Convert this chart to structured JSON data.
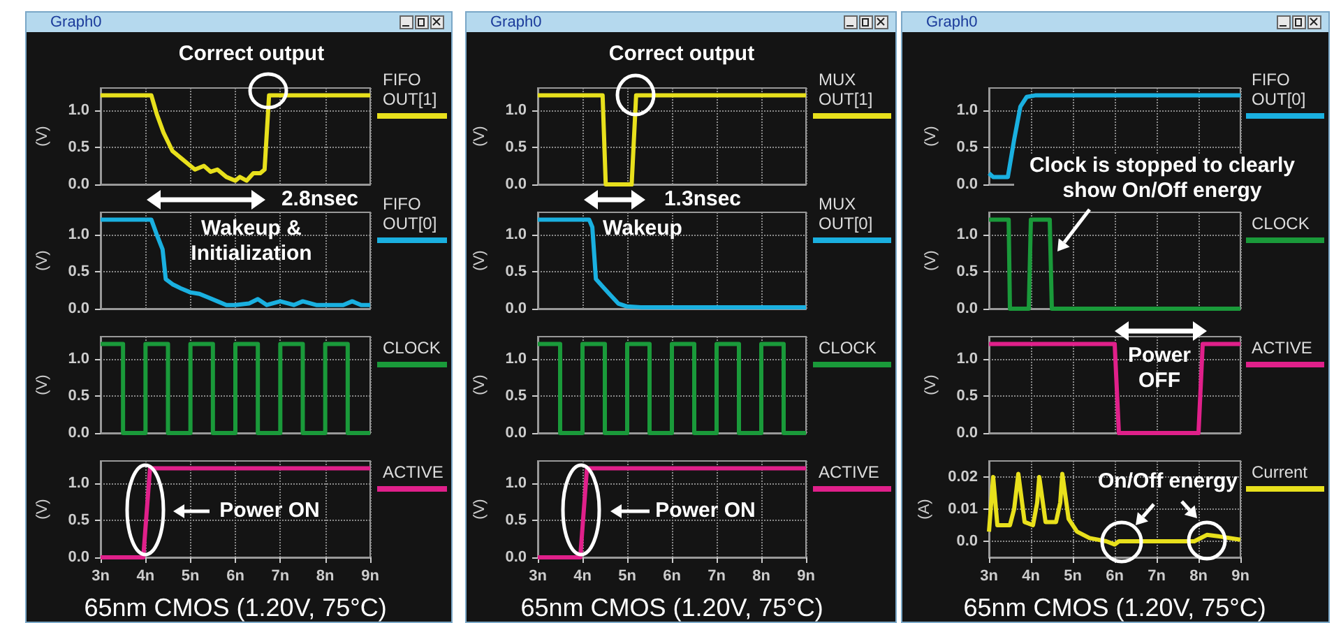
{
  "chart_data": [
    {
      "type": "line",
      "title": "Graph0",
      "ylabel": "(V)",
      "xlim": [
        3,
        9
      ],
      "ylim": [
        0,
        1.3
      ],
      "tick_labels": "y",
      "grid": true,
      "legend": "right",
      "annotations": [
        "Correct output",
        "2.8nsec"
      ],
      "xticks": [
        3,
        4,
        5,
        6,
        7,
        8,
        9
      ],
      "yticks": [
        {
          "value": 0,
          "label": "0.0"
        },
        {
          "value": 0.5,
          "label": "0.5"
        },
        {
          "value": 1,
          "label": "1.0"
        }
      ],
      "series": [
        {
          "name": "FIFO OUT[1]",
          "color": "#e8e01c",
          "x": [
            3,
            4.13,
            4.25,
            4.4,
            4.6,
            4.8,
            5.0,
            5.1,
            5.3,
            5.45,
            5.6,
            5.8,
            6.0,
            6.1,
            6.25,
            6.4,
            6.55,
            6.65,
            6.75,
            6.9,
            9
          ],
          "values": [
            1.2,
            1.2,
            0.95,
            0.7,
            0.45,
            0.35,
            0.25,
            0.2,
            0.25,
            0.17,
            0.2,
            0.1,
            0.05,
            0.1,
            0.05,
            0.15,
            0.15,
            0.2,
            1.2,
            1.2,
            1.2
          ]
        }
      ]
    },
    {
      "type": "line",
      "ylabel": "(V)",
      "xlim": [
        3,
        9
      ],
      "ylim": [
        0,
        1.3
      ],
      "tick_labels": "y",
      "grid": true,
      "legend": "right",
      "annotations": [
        "Wakeup & Initialization"
      ],
      "xticks": [
        3,
        4,
        5,
        6,
        7,
        8,
        9
      ],
      "yticks": [
        {
          "value": 0,
          "label": "0.0"
        },
        {
          "value": 0.5,
          "label": "0.5"
        },
        {
          "value": 1,
          "label": "1.0"
        }
      ],
      "series": [
        {
          "name": "FIFO OUT[0]",
          "color": "#1ab0e0",
          "x": [
            3,
            4.13,
            4.25,
            4.38,
            4.45,
            4.6,
            4.8,
            5.0,
            5.2,
            5.4,
            5.6,
            5.8,
            6.0,
            6.3,
            6.5,
            6.7,
            7.0,
            7.3,
            7.5,
            7.8,
            8.1,
            8.4,
            8.6,
            8.8,
            9
          ],
          "values": [
            1.2,
            1.2,
            1.0,
            0.8,
            0.4,
            0.33,
            0.27,
            0.22,
            0.2,
            0.15,
            0.1,
            0.05,
            0.05,
            0.07,
            0.13,
            0.05,
            0.1,
            0.05,
            0.1,
            0.05,
            0.05,
            0.05,
            0.1,
            0.05,
            0.05
          ]
        }
      ]
    },
    {
      "type": "line",
      "ylabel": "(V)",
      "xlim": [
        3,
        9
      ],
      "ylim": [
        0,
        1.3
      ],
      "tick_labels": "y",
      "grid": true,
      "legend": "right",
      "xticks": [
        3,
        4,
        5,
        6,
        7,
        8,
        9
      ],
      "yticks": [
        {
          "value": 0,
          "label": "0.0"
        },
        {
          "value": 0.5,
          "label": "0.5"
        },
        {
          "value": 1,
          "label": "1.0"
        }
      ],
      "series": [
        {
          "name": "CLOCK",
          "color": "#1a9a3a",
          "x": [
            3,
            3.5,
            3.5,
            4,
            4,
            4.5,
            4.5,
            5,
            5,
            5.5,
            5.5,
            6,
            6,
            6.5,
            6.5,
            7,
            7,
            7.5,
            7.5,
            8,
            8,
            8.5,
            8.5,
            9
          ],
          "values": [
            1.2,
            1.2,
            0,
            0,
            1.2,
            1.2,
            0,
            0,
            1.2,
            1.2,
            0,
            0,
            1.2,
            1.2,
            0,
            0,
            1.2,
            1.2,
            0,
            0,
            1.2,
            1.2,
            0,
            0
          ]
        }
      ]
    },
    {
      "type": "line",
      "ylabel": "(V)",
      "xlabel": "65nm CMOS (1.20V, 75°C)",
      "xlim": [
        3,
        9
      ],
      "ylim": [
        0,
        1.3
      ],
      "grid": true,
      "legend": "right",
      "annotations": [
        "Power ON"
      ],
      "xticks": [
        {
          "value": 3,
          "label": "3n"
        },
        {
          "value": 4,
          "label": "4n"
        },
        {
          "value": 5,
          "label": "5n"
        },
        {
          "value": 6,
          "label": "6n"
        },
        {
          "value": 7,
          "label": "7n"
        },
        {
          "value": 8,
          "label": "8n"
        },
        {
          "value": 9,
          "label": "9n"
        }
      ],
      "yticks": [
        {
          "value": 0,
          "label": "0.0"
        },
        {
          "value": 0.5,
          "label": "0.5"
        },
        {
          "value": 1,
          "label": "1.0"
        }
      ],
      "series": [
        {
          "name": "ACTIVE",
          "color": "#e0208a",
          "x": [
            3,
            3.95,
            4.1,
            9
          ],
          "values": [
            0,
            0,
            1.2,
            1.2
          ]
        }
      ]
    },
    {
      "type": "line",
      "title": "Graph0",
      "ylabel": "(V)",
      "xlim": [
        3,
        9
      ],
      "ylim": [
        0,
        1.3
      ],
      "tick_labels": "y",
      "grid": true,
      "legend": "right",
      "annotations": [
        "Correct output",
        "1.3nsec"
      ],
      "xticks": [
        3,
        4,
        5,
        6,
        7,
        8,
        9
      ],
      "yticks": [
        {
          "value": 0,
          "label": "0.0"
        },
        {
          "value": 0.5,
          "label": "0.5"
        },
        {
          "value": 1,
          "label": "1.0"
        }
      ],
      "series": [
        {
          "name": "MUX OUT[1]",
          "color": "#e8e01c",
          "x": [
            3,
            4.45,
            4.52,
            5.1,
            5.2,
            9
          ],
          "values": [
            1.2,
            1.2,
            0,
            0,
            1.2,
            1.2
          ]
        }
      ]
    },
    {
      "type": "line",
      "ylabel": "(V)",
      "xlim": [
        3,
        9
      ],
      "ylim": [
        0,
        1.3
      ],
      "tick_labels": "y",
      "grid": true,
      "legend": "right",
      "annotations": [
        "Wakeup"
      ],
      "xticks": [
        3,
        4,
        5,
        6,
        7,
        8,
        9
      ],
      "yticks": [
        {
          "value": 0,
          "label": "0.0"
        },
        {
          "value": 0.5,
          "label": "0.5"
        },
        {
          "value": 1,
          "label": "1.0"
        }
      ],
      "series": [
        {
          "name": "MUX OUT[0]",
          "color": "#1ab0e0",
          "x": [
            3,
            4.15,
            4.22,
            4.3,
            4.45,
            4.6,
            4.8,
            5.0,
            5.3,
            9
          ],
          "values": [
            1.2,
            1.2,
            1.1,
            0.4,
            0.3,
            0.2,
            0.07,
            0.03,
            0.02,
            0.02
          ]
        }
      ]
    },
    {
      "type": "line",
      "ylabel": "(V)",
      "xlim": [
        3,
        9
      ],
      "ylim": [
        0,
        1.3
      ],
      "tick_labels": "y",
      "grid": true,
      "legend": "right",
      "xticks": [
        3,
        4,
        5,
        6,
        7,
        8,
        9
      ],
      "yticks": [
        {
          "value": 0,
          "label": "0.0"
        },
        {
          "value": 0.5,
          "label": "0.5"
        },
        {
          "value": 1,
          "label": "1.0"
        }
      ],
      "series": [
        {
          "name": "CLOCK",
          "color": "#1a9a3a",
          "x": [
            3,
            3.5,
            3.5,
            4,
            4,
            4.5,
            4.5,
            5,
            5,
            5.5,
            5.5,
            6,
            6,
            6.5,
            6.5,
            7,
            7,
            7.5,
            7.5,
            8,
            8,
            8.5,
            8.5,
            9
          ],
          "values": [
            1.2,
            1.2,
            0,
            0,
            1.2,
            1.2,
            0,
            0,
            1.2,
            1.2,
            0,
            0,
            1.2,
            1.2,
            0,
            0,
            1.2,
            1.2,
            0,
            0,
            1.2,
            1.2,
            0,
            0
          ]
        }
      ]
    },
    {
      "type": "line",
      "ylabel": "(V)",
      "xlabel": "65nm CMOS (1.20V, 75°C)",
      "xlim": [
        3,
        9
      ],
      "ylim": [
        0,
        1.3
      ],
      "grid": true,
      "legend": "right",
      "annotations": [
        "Power ON"
      ],
      "xticks": [
        {
          "value": 3,
          "label": "3n"
        },
        {
          "value": 4,
          "label": "4n"
        },
        {
          "value": 5,
          "label": "5n"
        },
        {
          "value": 6,
          "label": "6n"
        },
        {
          "value": 7,
          "label": "7n"
        },
        {
          "value": 8,
          "label": "8n"
        },
        {
          "value": 9,
          "label": "9n"
        }
      ],
      "yticks": [
        {
          "value": 0,
          "label": "0.0"
        },
        {
          "value": 0.5,
          "label": "0.5"
        },
        {
          "value": 1,
          "label": "1.0"
        }
      ],
      "series": [
        {
          "name": "ACTIVE",
          "color": "#e0208a",
          "x": [
            3,
            3.95,
            4.1,
            9
          ],
          "values": [
            0,
            0,
            1.2,
            1.2
          ]
        }
      ]
    },
    {
      "type": "line",
      "title": "Graph0",
      "ylabel": "(V)",
      "xlim": [
        3,
        9
      ],
      "ylim": [
        0,
        1.3
      ],
      "tick_labels": "y",
      "grid": true,
      "legend": "right",
      "annotations": [
        "Clock is stopped to clearly show On/Off energy"
      ],
      "xticks": [
        3,
        4,
        5,
        6,
        7,
        8,
        9
      ],
      "yticks": [
        {
          "value": 0,
          "label": "0.0"
        },
        {
          "value": 0.5,
          "label": "0.5"
        },
        {
          "value": 1,
          "label": "1.0"
        }
      ],
      "series": [
        {
          "name": "FIFO OUT[0]",
          "color": "#1ab0e0",
          "x": [
            3,
            3.1,
            3.45,
            3.6,
            3.75,
            3.9,
            4.1,
            9
          ],
          "values": [
            0.15,
            0.1,
            0.1,
            0.6,
            1.05,
            1.18,
            1.2,
            1.2
          ]
        }
      ]
    },
    {
      "type": "line",
      "ylabel": "(V)",
      "xlim": [
        3,
        9
      ],
      "ylim": [
        0,
        1.3
      ],
      "tick_labels": "y",
      "grid": true,
      "legend": "right",
      "xticks": [
        3,
        4,
        5,
        6,
        7,
        8,
        9
      ],
      "yticks": [
        {
          "value": 0,
          "label": "0.0"
        },
        {
          "value": 0.5,
          "label": "0.5"
        },
        {
          "value": 1,
          "label": "1.0"
        }
      ],
      "series": [
        {
          "name": "CLOCK",
          "color": "#1a9a3a",
          "x": [
            3,
            3.47,
            3.5,
            3.95,
            4.0,
            4.45,
            4.5,
            9
          ],
          "values": [
            1.2,
            1.2,
            0,
            0,
            1.2,
            1.2,
            0,
            0
          ]
        }
      ]
    },
    {
      "type": "line",
      "ylabel": "(V)",
      "xlim": [
        3,
        9
      ],
      "ylim": [
        0,
        1.3
      ],
      "tick_labels": "y",
      "grid": true,
      "legend": "right",
      "annotations": [
        "Power OFF"
      ],
      "xticks": [
        3,
        4,
        5,
        6,
        7,
        8,
        9
      ],
      "yticks": [
        {
          "value": 0,
          "label": "0.0"
        },
        {
          "value": 0.5,
          "label": "0.5"
        },
        {
          "value": 1,
          "label": "1.0"
        }
      ],
      "series": [
        {
          "name": "ACTIVE",
          "color": "#e0208a",
          "x": [
            3,
            6.0,
            6.1,
            8.0,
            8.1,
            9
          ],
          "values": [
            1.2,
            1.2,
            0,
            0,
            1.2,
            1.2
          ]
        }
      ]
    },
    {
      "type": "line",
      "ylabel": "(A)",
      "xlabel": "65nm CMOS (1.20V, 75°C)",
      "xlim": [
        3,
        9
      ],
      "ylim": [
        -0.005,
        0.025
      ],
      "grid": true,
      "legend": "right",
      "annotations": [
        "On/Off energy"
      ],
      "xticks": [
        {
          "value": 3,
          "label": "3n"
        },
        {
          "value": 4,
          "label": "4n"
        },
        {
          "value": 5,
          "label": "5n"
        },
        {
          "value": 6,
          "label": "6n"
        },
        {
          "value": 7,
          "label": "7n"
        },
        {
          "value": 8,
          "label": "8n"
        },
        {
          "value": 9,
          "label": "9n"
        }
      ],
      "yticks": [
        {
          "value": 0,
          "label": "0.0"
        },
        0.01,
        0.02
      ],
      "series": [
        {
          "name": "Current",
          "color": "#e8e01c",
          "x": [
            3,
            3.1,
            3.2,
            3.5,
            3.6,
            3.7,
            3.85,
            4.05,
            4.15,
            4.2,
            4.35,
            4.6,
            4.7,
            4.75,
            4.9,
            5.1,
            5.4,
            5.8,
            6.0,
            6.1,
            6.3,
            7.9,
            8.2,
            8.5,
            9
          ],
          "values": [
            0.003,
            0.02,
            0.005,
            0.005,
            0.01,
            0.021,
            0.006,
            0.005,
            0.012,
            0.02,
            0.006,
            0.006,
            0.012,
            0.021,
            0.007,
            0.003,
            0.001,
            0.0,
            -0.001,
            0.0,
            0.0,
            0.0,
            0.002,
            0.0015,
            0.0005
          ]
        }
      ]
    }
  ]
}
